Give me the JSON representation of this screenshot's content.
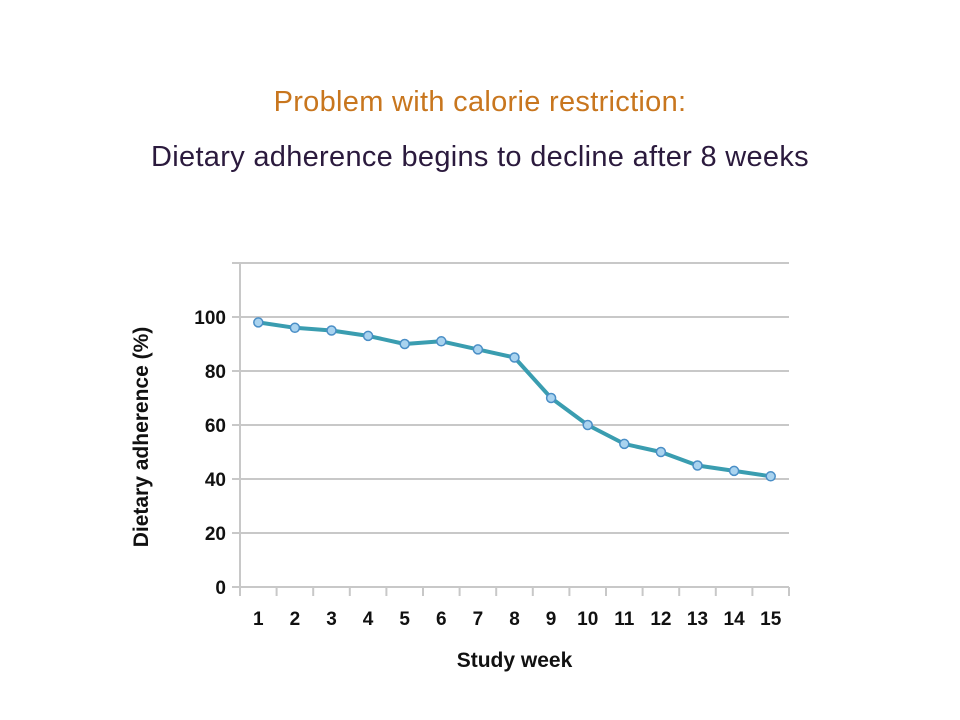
{
  "slide": {
    "title": "Problem with calorie restriction:",
    "subtitle": "Dietary adherence begins to decline after 8 weeks"
  },
  "colors": {
    "title": "#c8761e",
    "subtitle": "#2b1a3d",
    "series_line": "#3a9db0",
    "marker_fill": "#a9d3ef",
    "marker_stroke": "#4a8ec6",
    "grid": "#c8c8c8"
  },
  "chart_data": {
    "type": "line",
    "xlabel": "Study week",
    "ylabel": "Dietary adherence (%)",
    "categories": [
      "1",
      "2",
      "3",
      "4",
      "5",
      "6",
      "7",
      "8",
      "9",
      "10",
      "11",
      "12",
      "13",
      "14",
      "15"
    ],
    "series": [
      {
        "values": [
          98,
          96,
          95,
          93,
          90,
          91,
          88,
          85,
          70,
          60,
          53,
          50,
          45,
          43,
          41
        ]
      }
    ],
    "yticks": [
      "0",
      "20",
      "40",
      "60",
      "80",
      "100"
    ],
    "ylim": [
      0,
      120
    ],
    "grid": true,
    "legend": "none"
  }
}
